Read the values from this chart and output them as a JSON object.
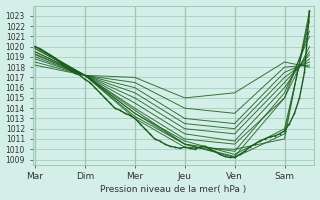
{
  "bg_color": "#d4efe8",
  "grid_color": "#a0c8b8",
  "line_color": "#1a5c1a",
  "ylabel_text": "Pression niveau de la mer( hPa )",
  "x_tick_labels": [
    "Mar",
    "Dim",
    "Mer",
    "Jeu",
    "Ven",
    "Sam"
  ],
  "ylim": [
    1008.5,
    1024.0
  ],
  "yticks": [
    1009,
    1010,
    1011,
    1012,
    1013,
    1014,
    1015,
    1016,
    1017,
    1018,
    1019,
    1020,
    1021,
    1022,
    1023
  ],
  "figsize": [
    3.2,
    2.0
  ],
  "dpi": 100,
  "lines": [
    {
      "x": [
        0,
        1,
        2,
        3,
        4,
        5,
        5.5
      ],
      "y": [
        1020.0,
        1017.2,
        1013.0,
        1010.2,
        1010.0,
        1011.0,
        1023.5
      ]
    },
    {
      "x": [
        0,
        1,
        2,
        3,
        4,
        5,
        5.5
      ],
      "y": [
        1020.0,
        1017.2,
        1013.2,
        1010.5,
        1009.2,
        1011.5,
        1023.0
      ]
    },
    {
      "x": [
        0,
        1,
        2,
        3,
        4,
        5,
        5.5
      ],
      "y": [
        1019.8,
        1017.2,
        1013.5,
        1010.8,
        1009.5,
        1012.0,
        1022.5
      ]
    },
    {
      "x": [
        0,
        1,
        2,
        3,
        4,
        5,
        5.5
      ],
      "y": [
        1019.8,
        1017.2,
        1013.5,
        1010.5,
        1009.3,
        1015.0,
        1021.5
      ]
    },
    {
      "x": [
        0,
        1,
        2,
        3,
        4,
        5,
        5.5
      ],
      "y": [
        1019.5,
        1017.2,
        1013.8,
        1010.5,
        1009.8,
        1015.5,
        1021.0
      ]
    },
    {
      "x": [
        0,
        1,
        2,
        3,
        4,
        5,
        5.5
      ],
      "y": [
        1019.5,
        1017.2,
        1014.0,
        1011.0,
        1010.5,
        1015.0,
        1020.0
      ]
    },
    {
      "x": [
        0,
        1,
        2,
        3,
        4,
        5,
        5.5
      ],
      "y": [
        1019.3,
        1017.2,
        1014.5,
        1011.5,
        1010.8,
        1016.0,
        1019.5
      ]
    },
    {
      "x": [
        0,
        1,
        2,
        3,
        4,
        5,
        5.5
      ],
      "y": [
        1019.2,
        1017.2,
        1015.0,
        1012.0,
        1011.5,
        1016.5,
        1019.2
      ]
    },
    {
      "x": [
        0,
        1,
        2,
        3,
        4,
        5,
        5.5
      ],
      "y": [
        1019.0,
        1017.2,
        1015.5,
        1012.5,
        1012.0,
        1017.0,
        1018.8
      ]
    },
    {
      "x": [
        0,
        1,
        2,
        3,
        4,
        5,
        5.5
      ],
      "y": [
        1018.8,
        1017.2,
        1016.0,
        1013.0,
        1012.5,
        1017.5,
        1018.5
      ]
    },
    {
      "x": [
        0,
        1,
        2,
        3,
        4,
        5,
        5.5
      ],
      "y": [
        1018.5,
        1017.2,
        1016.5,
        1014.0,
        1013.5,
        1018.0,
        1018.2
      ]
    },
    {
      "x": [
        0,
        1,
        2,
        3,
        4,
        5,
        5.5
      ],
      "y": [
        1018.2,
        1017.2,
        1017.0,
        1015.0,
        1015.5,
        1018.5,
        1018.0
      ]
    }
  ],
  "detail_line": {
    "x": [
      0,
      0.1,
      0.2,
      0.3,
      0.4,
      0.5,
      0.6,
      0.7,
      0.8,
      0.9,
      1.0,
      1.1,
      1.2,
      1.3,
      1.4,
      1.5,
      1.6,
      1.7,
      1.8,
      1.9,
      2.0,
      2.1,
      2.2,
      2.3,
      2.4,
      2.5,
      2.6,
      2.7,
      2.8,
      2.9,
      3.0,
      3.1,
      3.2,
      3.3,
      3.4,
      3.5,
      3.6,
      3.7,
      3.8,
      3.9,
      4.0,
      4.1,
      4.2,
      4.3,
      4.4,
      4.5,
      4.6,
      4.7,
      4.8,
      4.9,
      5.0,
      5.1,
      5.2,
      5.3,
      5.4,
      5.5
    ],
    "y": [
      1020.0,
      1019.8,
      1019.5,
      1019.2,
      1018.9,
      1018.5,
      1018.0,
      1017.7,
      1017.4,
      1017.2,
      1016.8,
      1016.5,
      1016.0,
      1015.5,
      1015.0,
      1014.5,
      1014.0,
      1013.8,
      1013.5,
      1013.3,
      1013.0,
      1012.5,
      1012.0,
      1011.5,
      1011.0,
      1010.8,
      1010.5,
      1010.3,
      1010.2,
      1010.1,
      1010.2,
      1010.1,
      1010.0,
      1010.2,
      1010.3,
      1010.0,
      1009.8,
      1009.5,
      1009.3,
      1009.2,
      1009.2,
      1009.5,
      1009.8,
      1010.2,
      1010.5,
      1010.8,
      1011.0,
      1011.2,
      1011.3,
      1011.5,
      1011.8,
      1012.5,
      1013.5,
      1015.0,
      1017.5,
      1023.5
    ]
  },
  "x_tick_positions": [
    0,
    1,
    2,
    3,
    4,
    5
  ],
  "xlim": [
    -0.05,
    5.6
  ]
}
